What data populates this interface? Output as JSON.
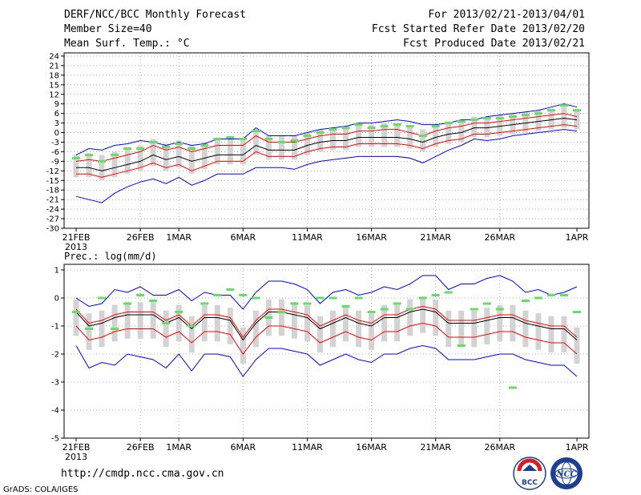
{
  "header": {
    "title": "DERF/NCC/BCC Monthly Forecast",
    "member_size": "Member Size=40",
    "variable": "Mean Surf. Temp.: °C",
    "period": "For 2013/02/21-2013/04/01",
    "started": "Fcst Started Refer Date 2013/02/20",
    "produced": "Fcst Produced Date 2013/02/21"
  },
  "footer": {
    "url": "http://cmdp.ncc.cma.gov.cn",
    "grads": "GrADS: COLA/IGES",
    "logo1": "BCC",
    "logo2": "NCC"
  },
  "colors": {
    "max_min": "#0000ff",
    "mean": "#000000",
    "spread": "#ff0000",
    "box": "#d3d3d3",
    "obs": "#66dd66"
  },
  "chart_data": [
    {
      "type": "line",
      "title": "Mean Surf. Temp.: °C",
      "xlabel": "",
      "ylabel": "°C",
      "x_ticks": [
        "21FEB",
        "26FEB",
        "1MAR",
        "6MAR",
        "11MAR",
        "16MAR",
        "21MAR",
        "26MAR",
        "1APR"
      ],
      "x_sublabel": "2013",
      "yticks": [
        24,
        21,
        18,
        15,
        12,
        9,
        6,
        3,
        0,
        -3,
        -6,
        -9,
        -12,
        -15,
        -18,
        -21,
        -24,
        -27,
        -30
      ],
      "ylim": [
        -30,
        25
      ],
      "n_days": 40,
      "series": [
        {
          "name": "max",
          "color": "#0000ff",
          "values": [
            -7,
            -5,
            -5.5,
            -4,
            -3.5,
            -2.5,
            -3,
            -4,
            -3,
            -4,
            -3.5,
            -2,
            -2,
            -2,
            1.5,
            -1,
            -1,
            -1,
            0,
            1,
            1.5,
            2,
            3,
            3,
            3.5,
            4,
            3.5,
            2.5,
            2.5,
            3,
            4,
            4,
            5,
            5.5,
            6,
            6.5,
            7,
            8,
            9,
            8
          ]
        },
        {
          "name": "spread_hi",
          "color": "#ff0000",
          "values": [
            -9,
            -8.5,
            -9,
            -8,
            -7,
            -6,
            -4,
            -5.5,
            -4.5,
            -6,
            -5,
            -4,
            -4,
            -4,
            -1,
            -3,
            -3,
            -3,
            -2,
            -1,
            -0.5,
            -0.5,
            0.5,
            0.5,
            1,
            1,
            0,
            -1,
            0.5,
            1.5,
            2,
            3,
            3,
            3.5,
            4,
            4.5,
            5,
            5.5,
            6,
            5
          ]
        },
        {
          "name": "mean",
          "color": "#000000",
          "values": [
            -11,
            -11,
            -12,
            -11,
            -10,
            -9,
            -7,
            -8.5,
            -7.5,
            -9,
            -8,
            -7,
            -7,
            -7,
            -4,
            -5.5,
            -5.5,
            -5.5,
            -4,
            -3,
            -2.5,
            -2.5,
            -1.5,
            -1.5,
            -1.5,
            -1.5,
            -2,
            -3,
            -1.5,
            -0.5,
            0,
            1.5,
            1.5,
            2,
            2.5,
            3,
            3.5,
            4,
            4.5,
            4
          ]
        },
        {
          "name": "spread_lo",
          "color": "#ff0000",
          "values": [
            -13,
            -13,
            -14,
            -13,
            -12,
            -11,
            -9.5,
            -11,
            -10,
            -12,
            -10.5,
            -9,
            -9,
            -9,
            -6,
            -7.5,
            -7.5,
            -7.5,
            -6,
            -5,
            -4.5,
            -4.5,
            -3.5,
            -3.5,
            -3.5,
            -3.5,
            -4,
            -5,
            -3.5,
            -2.5,
            -2,
            -0.5,
            -0.5,
            0,
            0.5,
            1,
            1.5,
            2,
            2.5,
            2
          ]
        },
        {
          "name": "min",
          "color": "#0000ff",
          "values": [
            -20,
            -21,
            -22,
            -19,
            -17,
            -15.5,
            -14.5,
            -16,
            -14,
            -16.5,
            -15,
            -13,
            -13,
            -13,
            -11,
            -11,
            -11,
            -11.5,
            -10,
            -9,
            -8.5,
            -8,
            -7.5,
            -7.5,
            -7.5,
            -7.5,
            -8,
            -9.5,
            -7.5,
            -5.5,
            -4,
            -2,
            -2.5,
            -2,
            -1,
            -0.5,
            0,
            0.5,
            1,
            0.5
          ]
        },
        {
          "name": "observed",
          "color": "#66dd66",
          "values": [
            -8,
            -7,
            -9,
            -7,
            -5,
            -5,
            -3,
            -4.5,
            -3.5,
            -5,
            -4,
            -2,
            -1.5,
            -2,
            0.5,
            -2,
            -3,
            -2.5,
            -1,
            0,
            1,
            1.5,
            2.5,
            1.5,
            2,
            2.5,
            2,
            -1,
            2,
            3,
            3.5,
            4,
            4.5,
            4.5,
            5,
            5.5,
            6,
            7,
            8.5,
            7
          ]
        }
      ]
    },
    {
      "type": "line",
      "title": "Prec.: log(mm/d)",
      "xlabel": "",
      "ylabel": "log(mm/d)",
      "x_ticks": [
        "21FEB",
        "26FEB",
        "1MAR",
        "6MAR",
        "11MAR",
        "16MAR",
        "21MAR",
        "26MAR",
        "1APR"
      ],
      "x_sublabel": "2013",
      "yticks": [
        1,
        0,
        -1,
        -2,
        -3,
        -4,
        -5
      ],
      "ylim": [
        -5,
        1.2
      ],
      "n_days": 40,
      "series": [
        {
          "name": "max",
          "color": "#0000ff",
          "values": [
            0,
            -0.3,
            -0.2,
            0.3,
            0.2,
            0.4,
            0.1,
            0.1,
            0.3,
            -0.1,
            0.2,
            0.1,
            0.1,
            -0.4,
            0.2,
            0.6,
            0.6,
            0.5,
            0.3,
            -0.2,
            0.2,
            0.3,
            0.1,
            0.2,
            0.4,
            0.3,
            0.5,
            0.8,
            0.8,
            0.3,
            0.5,
            0.5,
            0.7,
            0.8,
            0.6,
            0.2,
            0.3,
            0.1,
            0.2,
            0.4
          ]
        },
        {
          "name": "spread_hi",
          "color": "#ff0000",
          "values": [
            -0.4,
            -0.9,
            -0.8,
            -0.6,
            -0.5,
            -0.5,
            -0.5,
            -0.8,
            -0.6,
            -1.0,
            -0.6,
            -0.6,
            -0.7,
            -1.4,
            -0.8,
            -0.4,
            -0.4,
            -0.5,
            -0.6,
            -1.0,
            -0.8,
            -0.6,
            -0.8,
            -0.9,
            -0.6,
            -0.6,
            -0.4,
            -0.3,
            -0.4,
            -0.8,
            -0.8,
            -0.8,
            -0.7,
            -0.6,
            -0.6,
            -0.8,
            -0.9,
            -1.0,
            -1.0,
            -1.4
          ]
        },
        {
          "name": "mean",
          "color": "#000000",
          "values": [
            -0.5,
            -1.0,
            -0.9,
            -0.7,
            -0.6,
            -0.6,
            -0.6,
            -0.9,
            -0.7,
            -1.1,
            -0.7,
            -0.7,
            -0.8,
            -1.5,
            -0.9,
            -0.5,
            -0.5,
            -0.6,
            -0.7,
            -1.1,
            -0.9,
            -0.7,
            -0.9,
            -1.0,
            -0.7,
            -0.7,
            -0.5,
            -0.4,
            -0.5,
            -0.9,
            -0.9,
            -0.9,
            -0.8,
            -0.7,
            -0.7,
            -0.9,
            -1.0,
            -1.1,
            -1.1,
            -1.5
          ]
        },
        {
          "name": "spread_lo",
          "color": "#ff0000",
          "values": [
            -1,
            -1.5,
            -1.4,
            -1.2,
            -1.1,
            -1.1,
            -1.1,
            -1.4,
            -1.2,
            -1.6,
            -1.2,
            -1.2,
            -1.3,
            -2.0,
            -1.4,
            -1.0,
            -1.0,
            -1.1,
            -1.2,
            -1.6,
            -1.4,
            -1.2,
            -1.4,
            -1.5,
            -1.2,
            -1.2,
            -1.0,
            -0.9,
            -1.0,
            -1.4,
            -1.4,
            -1.4,
            -1.3,
            -1.2,
            -1.2,
            -1.4,
            -1.5,
            -1.6,
            -1.6,
            -2.0
          ]
        },
        {
          "name": "min",
          "color": "#0000ff",
          "values": [
            -1.7,
            -2.5,
            -2.3,
            -2.4,
            -2.0,
            -2.1,
            -2.2,
            -2.5,
            -2.0,
            -2.6,
            -2.0,
            -2.0,
            -2.1,
            -2.8,
            -2.2,
            -1.8,
            -1.8,
            -1.9,
            -2.0,
            -2.4,
            -2.2,
            -2.0,
            -2.2,
            -2.3,
            -2.0,
            -2.0,
            -1.8,
            -1.7,
            -1.8,
            -2.2,
            -2.2,
            -2.2,
            -2.1,
            -2.0,
            -2.0,
            -2.2,
            -2.3,
            -2.4,
            -2.4,
            -2.8
          ]
        },
        {
          "name": "observed",
          "color": "#66dd66",
          "values": [
            -0.5,
            -1.1,
            0,
            -1.1,
            -0.2,
            0.1,
            -0.1,
            -0.9,
            -0.5,
            -1,
            -0.2,
            0.1,
            0.3,
            0.1,
            0,
            -0.7,
            -0.5,
            -0.2,
            -0.2,
            0,
            0,
            -0.3,
            0,
            -0.5,
            -0.4,
            -0.2,
            -0.4,
            0,
            0.1,
            0.2,
            -1.7,
            -0.4,
            -0.2,
            -0.4,
            -3.2,
            -0.1,
            0,
            0.1,
            0.1,
            -0.5
          ]
        }
      ]
    }
  ]
}
